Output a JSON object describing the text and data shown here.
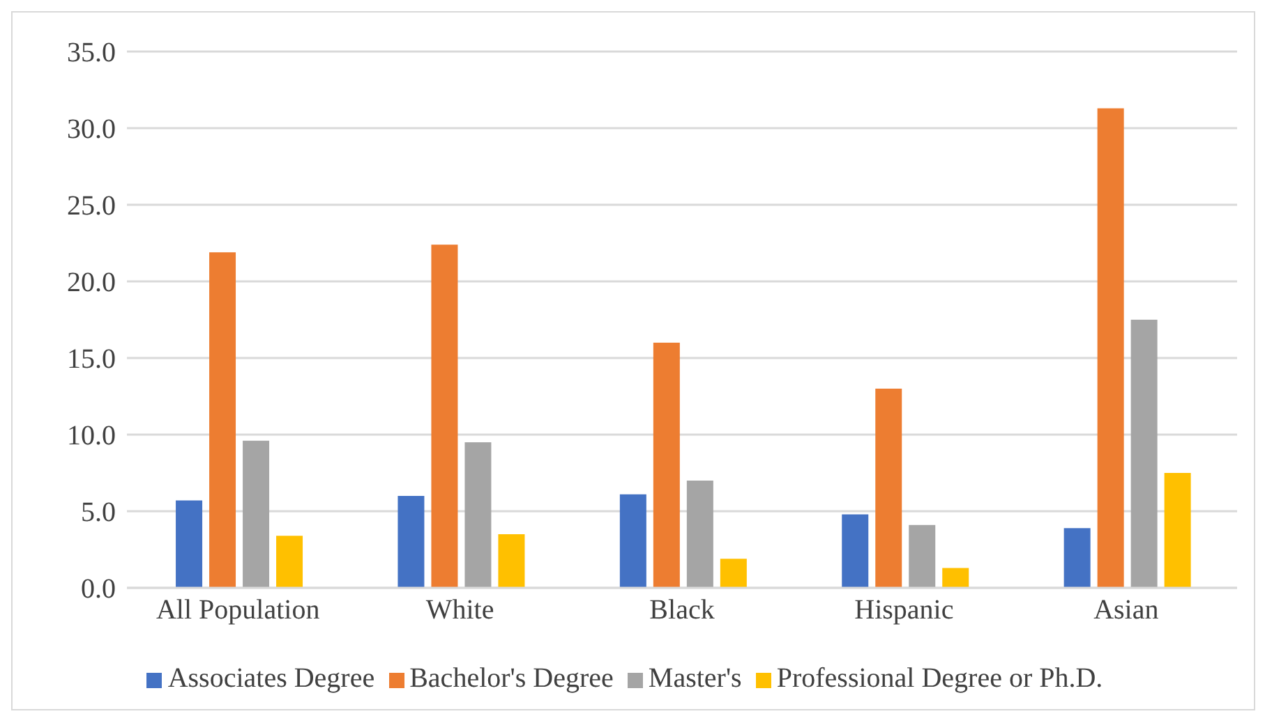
{
  "chart_data": {
    "type": "bar",
    "categories": [
      "All Population",
      "White",
      "Black",
      "Hispanic",
      "Asian"
    ],
    "series": [
      {
        "name": "Associates Degree",
        "color": "#4472c4",
        "values": [
          5.7,
          6.0,
          6.1,
          4.8,
          3.9
        ]
      },
      {
        "name": "Bachelor's Degree",
        "color": "#ed7d31",
        "values": [
          21.9,
          22.4,
          16.0,
          13.0,
          31.3
        ]
      },
      {
        "name": "Master's",
        "color": "#a5a5a5",
        "values": [
          9.6,
          9.5,
          7.0,
          4.1,
          17.5
        ]
      },
      {
        "name": "Professional Degree or Ph.D.",
        "color": "#ffc000",
        "values": [
          3.4,
          3.5,
          1.9,
          1.3,
          7.5
        ]
      }
    ],
    "ylim": [
      0,
      35
    ],
    "yticks": [
      {
        "value": 0,
        "label": "0.0"
      },
      {
        "value": 5,
        "label": "5.0"
      },
      {
        "value": 10,
        "label": "10.0"
      },
      {
        "value": 15,
        "label": "15.0"
      },
      {
        "value": 20,
        "label": "20.0"
      },
      {
        "value": 25,
        "label": "25.0"
      },
      {
        "value": 30,
        "label": "30.0"
      },
      {
        "value": 35,
        "label": "35.0"
      }
    ],
    "grid": "y",
    "legend": "bottom"
  }
}
